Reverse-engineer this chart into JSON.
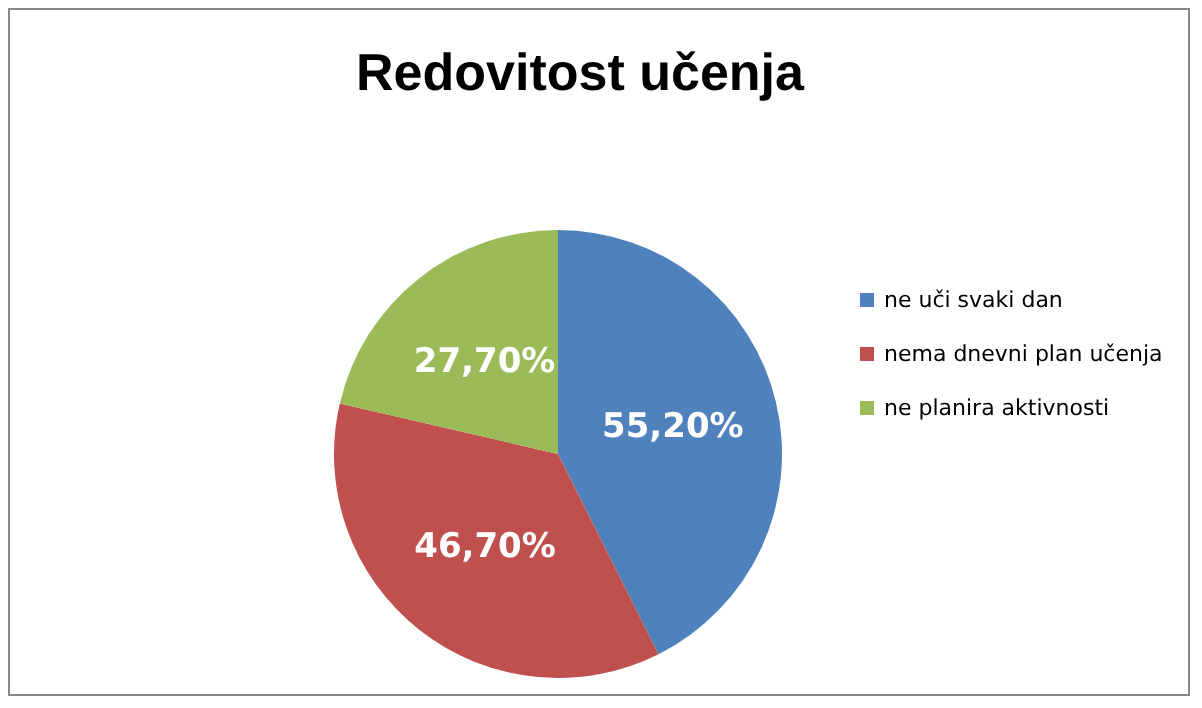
{
  "chart_data": {
    "type": "pie",
    "title": "Redovitost učenja",
    "categories": [
      "ne uči svaki dan",
      "nema dnevni plan učenja",
      "ne planira aktivnosti"
    ],
    "values": [
      55.2,
      46.7,
      27.7
    ],
    "colors": [
      "#4f81bd",
      "#c0504d",
      "#9bbb59"
    ],
    "value_labels": [
      "55,20%",
      "46,70%",
      "27,70%"
    ],
    "legend": "right"
  }
}
